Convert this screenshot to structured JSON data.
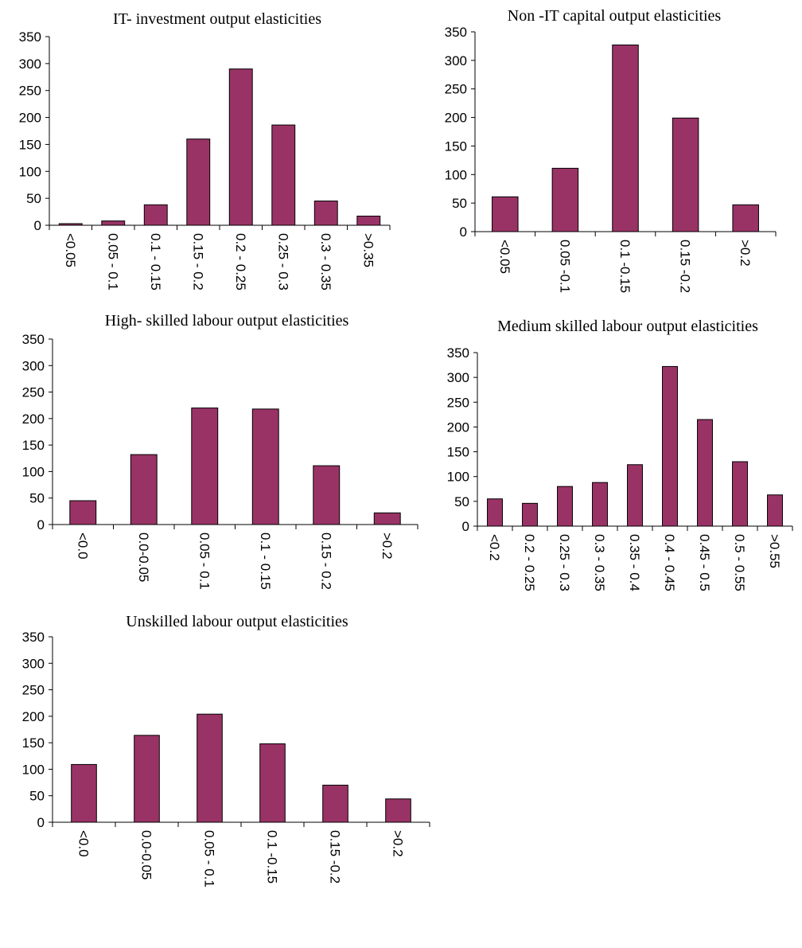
{
  "chart_data": [
    {
      "type": "bar",
      "title": "IT- investment output elasticities",
      "xlabel": "",
      "ylabel": "",
      "categories": [
        "<0.05",
        "0.05 - 0.1",
        "0.1 - 0.15",
        "0.15 - 0.2",
        "0.2 - 0.25",
        "0.25 - 0.3",
        "0.3 - 0.35",
        ">0.35"
      ],
      "values": [
        3,
        8,
        38,
        160,
        290,
        186,
        45,
        17
      ],
      "ylim": [
        0,
        350
      ],
      "yticks": [
        0,
        50,
        100,
        150,
        200,
        250,
        300,
        350
      ],
      "grid": false,
      "legend": "none",
      "bar_color": "#993366"
    },
    {
      "type": "bar",
      "title": "Non -IT  capital output elasticities",
      "xlabel": "",
      "ylabel": "",
      "categories": [
        "<0.05",
        "0.05 -0.1",
        "0.1 -0.15",
        "0.15 -0.2",
        ">0.2"
      ],
      "values": [
        61,
        111,
        327,
        199,
        47
      ],
      "ylim": [
        0,
        350
      ],
      "yticks": [
        0,
        50,
        100,
        150,
        200,
        250,
        300,
        350
      ],
      "grid": false,
      "legend": "none",
      "bar_color": "#993366"
    },
    {
      "type": "bar",
      "title": "High- skilled labour output elasticities",
      "xlabel": "",
      "ylabel": "",
      "categories": [
        "<0.0",
        "0.0-0.05",
        "0.05 - 0.1",
        "0.1 - 0.15",
        "0.15 - 0.2",
        ">0.2"
      ],
      "values": [
        45,
        132,
        220,
        218,
        111,
        22
      ],
      "ylim": [
        0,
        350
      ],
      "yticks": [
        0,
        50,
        100,
        150,
        200,
        250,
        300,
        350
      ],
      "grid": false,
      "legend": "none",
      "bar_color": "#993366"
    },
    {
      "type": "bar",
      "title": "Medium   skilled labour output elasticities",
      "xlabel": "",
      "ylabel": "",
      "categories": [
        "<0.2",
        "0.2 - 0.25",
        "0.25 - 0.3",
        "0.3 - 0.35",
        "0.35 - 0.4",
        "0.4 - 0.45",
        "0.45 - 0.5",
        "0.5 - 0.55",
        ">0.55"
      ],
      "values": [
        55,
        46,
        80,
        88,
        124,
        322,
        215,
        130,
        63
      ],
      "ylim": [
        0,
        350
      ],
      "yticks": [
        0,
        50,
        100,
        150,
        200,
        250,
        300,
        350
      ],
      "grid": false,
      "legend": "none",
      "bar_color": "#993366"
    },
    {
      "type": "bar",
      "title": "Unskilled labour output elasticities",
      "xlabel": "",
      "ylabel": "",
      "categories": [
        "<0.0",
        "0.0-0.05",
        "0.05 - 0.1",
        "0.1 -0.15",
        "0.15 -0.2",
        ">0.2"
      ],
      "values": [
        109,
        164,
        204,
        148,
        70,
        44
      ],
      "ylim": [
        0,
        350
      ],
      "yticks": [
        0,
        50,
        100,
        150,
        200,
        250,
        300,
        350
      ],
      "grid": false,
      "legend": "none",
      "bar_color": "#993366"
    }
  ]
}
